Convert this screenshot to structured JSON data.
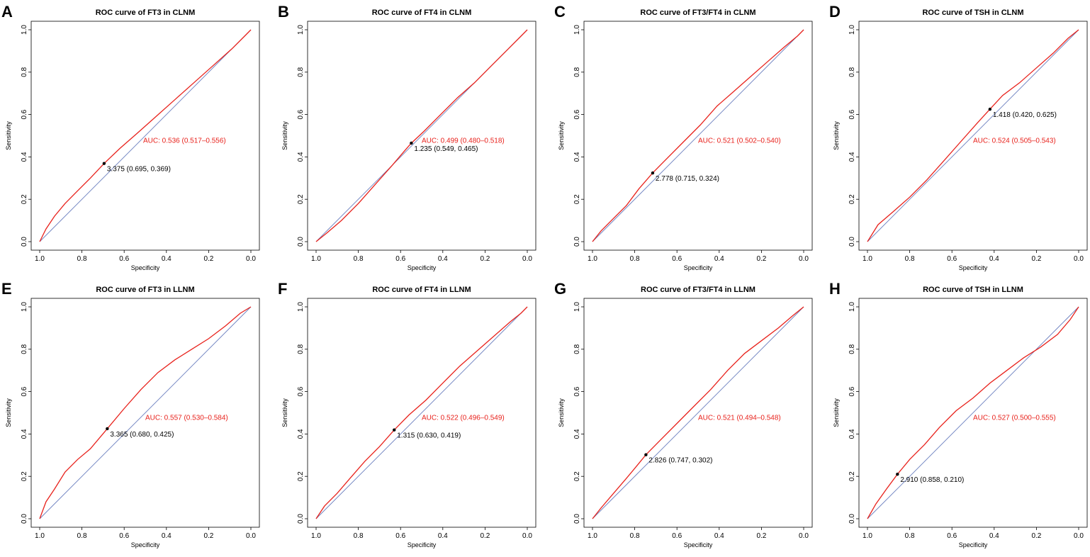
{
  "chart_data": [
    {
      "panel": "A",
      "type": "line",
      "title": "ROC curve of FT3 in CLNM",
      "xlabel": "Specificity",
      "ylabel": "Sensitivity",
      "xlim": [
        1.0,
        0.0
      ],
      "ylim": [
        0.0,
        1.0
      ],
      "xticks": [
        "1.0",
        "0.8",
        "0.6",
        "0.4",
        "0.2",
        "0.0"
      ],
      "yticks": [
        "0.0",
        "0.2",
        "0.4",
        "0.6",
        "0.8",
        "1.0"
      ],
      "series": [
        {
          "name": "ROC",
          "color": "#e8221c",
          "x": [
            1.0,
            0.97,
            0.93,
            0.88,
            0.82,
            0.76,
            0.695,
            0.62,
            0.54,
            0.45,
            0.36,
            0.27,
            0.18,
            0.09,
            0.03,
            0.0
          ],
          "y": [
            0.0,
            0.06,
            0.12,
            0.18,
            0.24,
            0.3,
            0.369,
            0.44,
            0.51,
            0.59,
            0.67,
            0.75,
            0.83,
            0.91,
            0.97,
            1.0
          ]
        }
      ],
      "reference_color": "#6b7fbf",
      "auc_text": "AUC: 0.536 (0.517–0.556)",
      "auc_pos": [
        0.51,
        0.48
      ],
      "cutoff": {
        "spec": 0.695,
        "sens": 0.369,
        "text": "3.375 (0.695, 0.369)"
      }
    },
    {
      "panel": "B",
      "type": "line",
      "title": "ROC curve of FT4 in CLNM",
      "xlabel": "Specificity",
      "ylabel": "Sensitivity",
      "xlim": [
        1.0,
        0.0
      ],
      "ylim": [
        0.0,
        1.0
      ],
      "xticks": [
        "1.0",
        "0.8",
        "0.6",
        "0.4",
        "0.2",
        "0.0"
      ],
      "yticks": [
        "0.0",
        "0.2",
        "0.4",
        "0.6",
        "0.8",
        "1.0"
      ],
      "series": [
        {
          "name": "ROC",
          "color": "#e8221c",
          "x": [
            1.0,
            0.95,
            0.88,
            0.8,
            0.72,
            0.64,
            0.58,
            0.549,
            0.49,
            0.41,
            0.33,
            0.25,
            0.17,
            0.09,
            0.03,
            0.0
          ],
          "y": [
            0.0,
            0.04,
            0.1,
            0.18,
            0.27,
            0.36,
            0.43,
            0.465,
            0.52,
            0.6,
            0.68,
            0.75,
            0.83,
            0.91,
            0.97,
            1.0
          ]
        }
      ],
      "reference_color": "#6b7fbf",
      "auc_text": "AUC: 0.499 (0.480–0.518)",
      "auc_pos": [
        0.5,
        0.48
      ],
      "cutoff": {
        "spec": 0.549,
        "sens": 0.465,
        "text": "1.235 (0.549, 0.465)"
      }
    },
    {
      "panel": "C",
      "type": "line",
      "title": "ROC curve of FT3/FT4 in CLNM",
      "xlabel": "Specificity",
      "ylabel": "Sensitivity",
      "xlim": [
        1.0,
        0.0
      ],
      "ylim": [
        0.0,
        1.0
      ],
      "xticks": [
        "1.0",
        "0.8",
        "0.6",
        "0.4",
        "0.2",
        "0.0"
      ],
      "yticks": [
        "0.0",
        "0.2",
        "0.4",
        "0.6",
        "0.8",
        "1.0"
      ],
      "series": [
        {
          "name": "ROC",
          "color": "#e8221c",
          "x": [
            1.0,
            0.96,
            0.9,
            0.84,
            0.78,
            0.715,
            0.65,
            0.57,
            0.49,
            0.41,
            0.33,
            0.25,
            0.17,
            0.09,
            0.03,
            0.0
          ],
          "y": [
            0.0,
            0.05,
            0.11,
            0.17,
            0.25,
            0.324,
            0.39,
            0.47,
            0.55,
            0.64,
            0.71,
            0.78,
            0.85,
            0.92,
            0.97,
            1.0
          ]
        }
      ],
      "reference_color": "#6b7fbf",
      "auc_text": "AUC: 0.521 (0.502–0.540)",
      "auc_pos": [
        0.5,
        0.48
      ],
      "cutoff": {
        "spec": 0.715,
        "sens": 0.324,
        "text": "2.778 (0.715, 0.324)"
      }
    },
    {
      "panel": "D",
      "type": "line",
      "title": "ROC curve of TSH in CLNM",
      "xlabel": "Specificity",
      "ylabel": "Sensitivity",
      "xlim": [
        1.0,
        0.0
      ],
      "ylim": [
        0.0,
        1.0
      ],
      "xticks": [
        "1.0",
        "0.8",
        "0.6",
        "0.4",
        "0.2",
        "0.0"
      ],
      "yticks": [
        "0.0",
        "0.2",
        "0.4",
        "0.6",
        "0.8",
        "1.0"
      ],
      "series": [
        {
          "name": "ROC",
          "color": "#e8221c",
          "x": [
            1.0,
            0.95,
            0.88,
            0.8,
            0.72,
            0.64,
            0.56,
            0.48,
            0.42,
            0.36,
            0.28,
            0.2,
            0.12,
            0.05,
            0.0
          ],
          "y": [
            0.0,
            0.08,
            0.14,
            0.21,
            0.29,
            0.38,
            0.47,
            0.56,
            0.625,
            0.69,
            0.75,
            0.82,
            0.89,
            0.96,
            1.0
          ]
        }
      ],
      "reference_color": "#6b7fbf",
      "auc_text": "AUC: 0.524 (0.505–0.543)",
      "auc_pos": [
        0.5,
        0.48
      ],
      "cutoff": {
        "spec": 0.42,
        "sens": 0.625,
        "text": "1.418 (0.420, 0.625)"
      }
    },
    {
      "panel": "E",
      "type": "line",
      "title": "ROC curve of FT3 in LLNM",
      "xlabel": "Specificity",
      "ylabel": "Sensitivity",
      "xlim": [
        1.0,
        0.0
      ],
      "ylim": [
        0.0,
        1.0
      ],
      "xticks": [
        "1.0",
        "0.8",
        "0.6",
        "0.4",
        "0.2",
        "0.0"
      ],
      "yticks": [
        "0.0",
        "0.2",
        "0.4",
        "0.6",
        "0.8",
        "1.0"
      ],
      "series": [
        {
          "name": "ROC",
          "color": "#e8221c",
          "x": [
            1.0,
            0.97,
            0.93,
            0.88,
            0.82,
            0.76,
            0.68,
            0.6,
            0.52,
            0.44,
            0.36,
            0.28,
            0.2,
            0.12,
            0.05,
            0.0
          ],
          "y": [
            0.0,
            0.08,
            0.14,
            0.22,
            0.28,
            0.33,
            0.425,
            0.52,
            0.61,
            0.69,
            0.75,
            0.8,
            0.85,
            0.91,
            0.97,
            1.0
          ]
        }
      ],
      "reference_color": "#6b7fbf",
      "auc_text": "AUC: 0.557 (0.530–0.584)",
      "auc_pos": [
        0.5,
        0.48
      ],
      "cutoff": {
        "spec": 0.68,
        "sens": 0.425,
        "text": "3.365 (0.680, 0.425)"
      }
    },
    {
      "panel": "F",
      "type": "line",
      "title": "ROC curve of FT4 in LLNM",
      "xlabel": "Specificity",
      "ylabel": "Sensitivity",
      "xlim": [
        1.0,
        0.0
      ],
      "ylim": [
        0.0,
        1.0
      ],
      "xticks": [
        "1.0",
        "0.8",
        "0.6",
        "0.4",
        "0.2",
        "0.0"
      ],
      "yticks": [
        "0.0",
        "0.2",
        "0.4",
        "0.6",
        "0.8",
        "1.0"
      ],
      "series": [
        {
          "name": "ROC",
          "color": "#e8221c",
          "x": [
            1.0,
            0.96,
            0.9,
            0.84,
            0.77,
            0.7,
            0.63,
            0.56,
            0.48,
            0.4,
            0.32,
            0.24,
            0.16,
            0.08,
            0.03,
            0.0
          ],
          "y": [
            0.0,
            0.06,
            0.12,
            0.19,
            0.27,
            0.34,
            0.419,
            0.49,
            0.56,
            0.64,
            0.72,
            0.79,
            0.86,
            0.93,
            0.97,
            1.0
          ]
        }
      ],
      "reference_color": "#6b7fbf",
      "auc_text": "AUC: 0.522 (0.496–0.549)",
      "auc_pos": [
        0.5,
        0.48
      ],
      "cutoff": {
        "spec": 0.63,
        "sens": 0.419,
        "text": "1.315 (0.630, 0.419)"
      }
    },
    {
      "panel": "G",
      "type": "line",
      "title": "ROC curve of FT3/FT4 in LLNM",
      "xlabel": "Specificity",
      "ylabel": "Sensitivity",
      "xlim": [
        1.0,
        0.0
      ],
      "ylim": [
        0.0,
        1.0
      ],
      "xticks": [
        "1.0",
        "0.8",
        "0.6",
        "0.4",
        "0.2",
        "0.0"
      ],
      "yticks": [
        "0.0",
        "0.2",
        "0.4",
        "0.6",
        "0.8",
        "1.0"
      ],
      "series": [
        {
          "name": "ROC",
          "color": "#e8221c",
          "x": [
            1.0,
            0.96,
            0.9,
            0.84,
            0.79,
            0.747,
            0.68,
            0.6,
            0.52,
            0.44,
            0.36,
            0.28,
            0.2,
            0.12,
            0.05,
            0.0
          ],
          "y": [
            0.0,
            0.05,
            0.12,
            0.19,
            0.25,
            0.302,
            0.37,
            0.45,
            0.53,
            0.61,
            0.7,
            0.78,
            0.84,
            0.9,
            0.96,
            1.0
          ]
        }
      ],
      "reference_color": "#6b7fbf",
      "auc_text": "AUC: 0.521 (0.494–0.548)",
      "auc_pos": [
        0.5,
        0.48
      ],
      "cutoff": {
        "spec": 0.747,
        "sens": 0.302,
        "text": "2.826 (0.747, 0.302)"
      }
    },
    {
      "panel": "H",
      "type": "line",
      "title": "ROC curve of TSH in LLNM",
      "xlabel": "Specificity",
      "ylabel": "Sensitivity",
      "xlim": [
        1.0,
        0.0
      ],
      "ylim": [
        0.0,
        1.0
      ],
      "xticks": [
        "1.0",
        "0.8",
        "0.6",
        "0.4",
        "0.2",
        "0.0"
      ],
      "yticks": [
        "0.0",
        "0.2",
        "0.4",
        "0.6",
        "0.8",
        "1.0"
      ],
      "series": [
        {
          "name": "ROC",
          "color": "#e8221c",
          "x": [
            1.0,
            0.96,
            0.91,
            0.858,
            0.8,
            0.73,
            0.66,
            0.58,
            0.5,
            0.42,
            0.34,
            0.26,
            0.18,
            0.1,
            0.04,
            0.0
          ],
          "y": [
            0.0,
            0.07,
            0.14,
            0.21,
            0.28,
            0.35,
            0.43,
            0.51,
            0.57,
            0.64,
            0.7,
            0.76,
            0.81,
            0.87,
            0.94,
            1.0
          ]
        }
      ],
      "reference_color": "#6b7fbf",
      "auc_text": "AUC: 0.527 (0.500–0.555)",
      "auc_pos": [
        0.5,
        0.48
      ],
      "cutoff": {
        "spec": 0.858,
        "sens": 0.21,
        "text": "2.910 (0.858, 0.210)"
      }
    }
  ]
}
